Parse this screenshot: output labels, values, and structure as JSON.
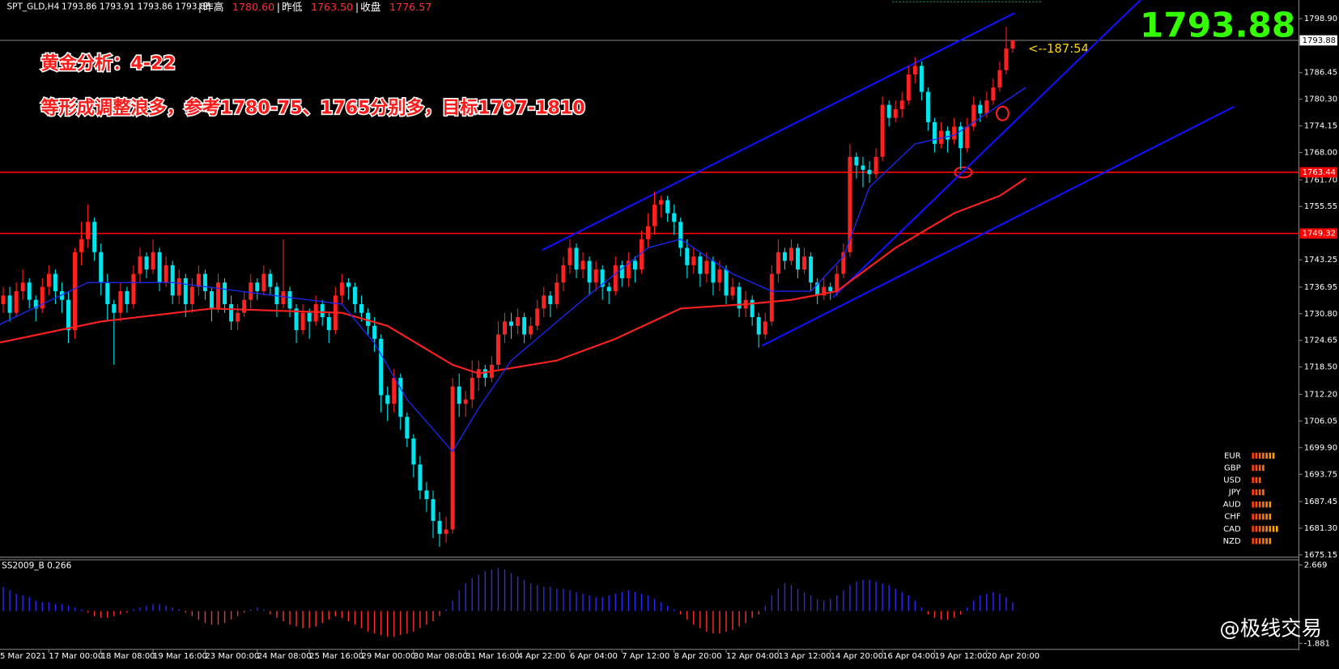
{
  "header": {
    "symbol": "SPT_GLD,H4",
    "ohlc": "1793.86 1793.91 1793.86 1793.88",
    "stats": [
      {
        "label": "昨高",
        "value": "1780.60"
      },
      {
        "label": "昨低",
        "value": "1763.50"
      },
      {
        "label": "收盘",
        "value": "1776.57"
      }
    ]
  },
  "chart_data": {
    "type": "candlestick",
    "annotations": [
      "黄金分析：4-22",
      "等形成调整浪多，参考1780-75、1765分别多，目标1797-1810"
    ],
    "countdown": "<--187:54",
    "last_price": 1793.88,
    "up_color": "#ff2020",
    "down_color": "#00e5ee",
    "ohlc": [
      [
        1731,
        1736,
        1729,
        1733
      ],
      [
        1733,
        1737,
        1731,
        1735
      ],
      [
        1735,
        1737,
        1729,
        1731
      ],
      [
        1731,
        1738,
        1730,
        1736
      ],
      [
        1736,
        1741,
        1734,
        1738
      ],
      [
        1738,
        1739,
        1732,
        1734
      ],
      [
        1734,
        1735,
        1729,
        1732
      ],
      [
        1732,
        1739,
        1731,
        1737
      ],
      [
        1737,
        1742,
        1735,
        1740
      ],
      [
        1740,
        1741,
        1733,
        1736
      ],
      [
        1736,
        1738,
        1731,
        1734
      ],
      [
        1734,
        1736,
        1724,
        1727
      ],
      [
        1727,
        1746,
        1725,
        1745
      ],
      [
        1745,
        1752,
        1742,
        1748
      ],
      [
        1748,
        1756,
        1746,
        1752
      ],
      [
        1752,
        1753,
        1743,
        1745
      ],
      [
        1745,
        1747,
        1735,
        1738
      ],
      [
        1738,
        1740,
        1729,
        1733
      ],
      [
        1733,
        1734,
        1719,
        1731
      ],
      [
        1731,
        1738,
        1729,
        1736
      ],
      [
        1736,
        1737,
        1731,
        1733
      ],
      [
        1733,
        1742,
        1732,
        1740
      ],
      [
        1740,
        1746,
        1738,
        1744
      ],
      [
        1744,
        1745,
        1739,
        1741
      ],
      [
        1741,
        1748,
        1740,
        1745
      ],
      [
        1745,
        1746,
        1736,
        1738
      ],
      [
        1738,
        1744,
        1737,
        1742
      ],
      [
        1742,
        1743,
        1733,
        1735
      ],
      [
        1735,
        1741,
        1733,
        1739
      ],
      [
        1739,
        1740,
        1730,
        1733
      ],
      [
        1733,
        1739,
        1731,
        1737
      ],
      [
        1737,
        1742,
        1735,
        1740
      ],
      [
        1740,
        1741,
        1734,
        1736
      ],
      [
        1736,
        1737,
        1729,
        1732
      ],
      [
        1732,
        1740,
        1731,
        1738
      ],
      [
        1738,
        1739,
        1731,
        1733
      ],
      [
        1733,
        1735,
        1727,
        1729
      ],
      [
        1729,
        1733,
        1727,
        1731
      ],
      [
        1731,
        1736,
        1730,
        1734
      ],
      [
        1734,
        1740,
        1732,
        1738
      ],
      [
        1738,
        1739,
        1734,
        1736
      ],
      [
        1736,
        1742,
        1735,
        1740
      ],
      [
        1740,
        1741,
        1735,
        1737
      ],
      [
        1737,
        1738,
        1730,
        1733
      ],
      [
        1733,
        1748,
        1732,
        1736
      ],
      [
        1736,
        1737,
        1730,
        1732
      ],
      [
        1732,
        1733,
        1724,
        1727
      ],
      [
        1727,
        1733,
        1726,
        1731
      ],
      [
        1731,
        1732,
        1725,
        1729
      ],
      [
        1729,
        1735,
        1728,
        1733
      ],
      [
        1733,
        1734,
        1728,
        1730
      ],
      [
        1730,
        1731,
        1724,
        1727
      ],
      [
        1727,
        1737,
        1726,
        1735
      ],
      [
        1735,
        1740,
        1733,
        1738
      ],
      [
        1738,
        1739,
        1734,
        1737
      ],
      [
        1737,
        1738,
        1731,
        1733
      ],
      [
        1733,
        1735,
        1729,
        1731
      ],
      [
        1731,
        1732,
        1726,
        1728
      ],
      [
        1728,
        1730,
        1722,
        1725
      ],
      [
        1725,
        1726,
        1708,
        1712
      ],
      [
        1712,
        1714,
        1706,
        1710
      ],
      [
        1710,
        1718,
        1708,
        1716
      ],
      [
        1716,
        1717,
        1704,
        1707
      ],
      [
        1707,
        1708,
        1700,
        1702
      ],
      [
        1702,
        1703,
        1693,
        1696
      ],
      [
        1696,
        1698,
        1688,
        1690
      ],
      [
        1690,
        1692,
        1685,
        1688
      ],
      [
        1688,
        1690,
        1679,
        1683
      ],
      [
        1683,
        1685,
        1677,
        1680
      ],
      [
        1680,
        1684,
        1678,
        1681
      ],
      [
        1681,
        1716,
        1680,
        1714
      ],
      [
        1714,
        1717,
        1707,
        1710
      ],
      [
        1710,
        1713,
        1707,
        1711
      ],
      [
        1711,
        1720,
        1709,
        1716
      ],
      [
        1716,
        1720,
        1713,
        1718
      ],
      [
        1718,
        1719,
        1714,
        1716
      ],
      [
        1716,
        1721,
        1715,
        1719
      ],
      [
        1719,
        1729,
        1718,
        1726
      ],
      [
        1726,
        1731,
        1724,
        1729
      ],
      [
        1729,
        1731,
        1725,
        1728
      ],
      [
        1728,
        1732,
        1726,
        1730
      ],
      [
        1730,
        1731,
        1724,
        1726
      ],
      [
        1726,
        1730,
        1725,
        1728
      ],
      [
        1728,
        1734,
        1727,
        1732
      ],
      [
        1732,
        1737,
        1730,
        1735
      ],
      [
        1735,
        1736,
        1730,
        1733
      ],
      [
        1733,
        1740,
        1732,
        1738
      ],
      [
        1738,
        1744,
        1736,
        1742
      ],
      [
        1742,
        1748,
        1740,
        1746
      ],
      [
        1746,
        1747,
        1739,
        1741
      ],
      [
        1741,
        1745,
        1739,
        1743
      ],
      [
        1743,
        1744,
        1735,
        1738
      ],
      [
        1738,
        1743,
        1736,
        1741
      ],
      [
        1741,
        1742,
        1734,
        1737
      ],
      [
        1737,
        1738,
        1733,
        1736
      ],
      [
        1736,
        1744,
        1735,
        1742
      ],
      [
        1742,
        1743,
        1737,
        1739
      ],
      [
        1739,
        1745,
        1737,
        1743
      ],
      [
        1743,
        1744,
        1738,
        1741
      ],
      [
        1741,
        1750,
        1740,
        1748
      ],
      [
        1748,
        1754,
        1746,
        1751
      ],
      [
        1751,
        1759,
        1749,
        1756
      ],
      [
        1756,
        1758,
        1753,
        1757
      ],
      [
        1757,
        1758,
        1752,
        1754
      ],
      [
        1754,
        1756,
        1749,
        1752
      ],
      [
        1752,
        1753,
        1744,
        1746
      ],
      [
        1746,
        1748,
        1739,
        1742
      ],
      [
        1742,
        1746,
        1740,
        1744
      ],
      [
        1744,
        1745,
        1737,
        1740
      ],
      [
        1740,
        1745,
        1738,
        1743
      ],
      [
        1743,
        1744,
        1735,
        1738
      ],
      [
        1738,
        1743,
        1736,
        1741
      ],
      [
        1741,
        1742,
        1733,
        1735
      ],
      [
        1735,
        1739,
        1734,
        1737
      ],
      [
        1737,
        1738,
        1730,
        1732
      ],
      [
        1732,
        1736,
        1730,
        1734
      ],
      [
        1734,
        1735,
        1728,
        1730
      ],
      [
        1730,
        1731,
        1723,
        1726
      ],
      [
        1726,
        1731,
        1725,
        1729
      ],
      [
        1729,
        1742,
        1728,
        1740
      ],
      [
        1740,
        1748,
        1738,
        1745
      ],
      [
        1745,
        1746,
        1741,
        1743
      ],
      [
        1743,
        1748,
        1742,
        1746
      ],
      [
        1746,
        1747,
        1739,
        1741
      ],
      [
        1741,
        1746,
        1740,
        1744
      ],
      [
        1744,
        1745,
        1736,
        1738
      ],
      [
        1738,
        1739,
        1733,
        1735
      ],
      [
        1735,
        1739,
        1734,
        1737
      ],
      [
        1737,
        1738,
        1734,
        1736
      ],
      [
        1736,
        1742,
        1735,
        1740
      ],
      [
        1740,
        1747,
        1739,
        1745
      ],
      [
        1745,
        1770,
        1744,
        1767
      ],
      [
        1767,
        1768,
        1762,
        1765
      ],
      [
        1765,
        1767,
        1760,
        1764
      ],
      [
        1764,
        1766,
        1761,
        1763
      ],
      [
        1763,
        1769,
        1762,
        1767
      ],
      [
        1767,
        1781,
        1766,
        1779
      ],
      [
        1779,
        1780,
        1774,
        1776
      ],
      [
        1776,
        1780,
        1775,
        1778
      ],
      [
        1778,
        1782,
        1776,
        1780
      ],
      [
        1780,
        1788,
        1779,
        1786
      ],
      [
        1786,
        1790,
        1784,
        1788
      ],
      [
        1788,
        1789,
        1780,
        1782
      ],
      [
        1782,
        1783,
        1773,
        1775
      ],
      [
        1775,
        1776,
        1768,
        1770
      ],
      [
        1770,
        1775,
        1769,
        1773
      ],
      [
        1773,
        1774,
        1768,
        1771
      ],
      [
        1771,
        1776,
        1770,
        1774
      ],
      [
        1774,
        1775,
        1764,
        1769
      ],
      [
        1769,
        1776,
        1768,
        1774
      ],
      [
        1774,
        1781,
        1773,
        1779
      ],
      [
        1779,
        1780,
        1775,
        1777
      ],
      [
        1777,
        1782,
        1776,
        1780
      ],
      [
        1780,
        1785,
        1779,
        1783
      ],
      [
        1783,
        1789,
        1782,
        1787
      ],
      [
        1787,
        1797,
        1786,
        1792
      ],
      [
        1792,
        1794,
        1791,
        1793.88
      ]
    ],
    "xlim": [
      0.5,
      199.8
    ],
    "xticks": [
      {
        "value": 0,
        "label": "5 Mar 2021"
      },
      {
        "value": 8,
        "label": "17 Mar 00:00"
      },
      {
        "value": 16,
        "label": "18 Mar 08:00"
      },
      {
        "value": 24,
        "label": "19 Mar 16:00"
      },
      {
        "value": 32,
        "label": "23 Mar 00:00"
      },
      {
        "value": 40,
        "label": "24 Mar 08:00"
      },
      {
        "value": 48,
        "label": "25 Mar 16:00"
      },
      {
        "value": 56,
        "label": "29 Mar 00:00"
      },
      {
        "value": 64,
        "label": "30 Mar 08:00"
      },
      {
        "value": 72,
        "label": "31 Mar 16:00"
      },
      {
        "value": 80,
        "label": "4 Apr 22:00"
      },
      {
        "value": 88,
        "label": "6 Apr 04:00"
      },
      {
        "value": 96,
        "label": "7 Apr 12:00"
      },
      {
        "value": 104,
        "label": "8 Apr 20:00"
      },
      {
        "value": 112,
        "label": "12 Apr 04:00"
      },
      {
        "value": 120,
        "label": "13 Apr 12:00"
      },
      {
        "value": 128,
        "label": "14 Apr 20:00"
      },
      {
        "value": 136,
        "label": "16 Apr 04:00"
      },
      {
        "value": 144,
        "label": "19 Apr 12:00"
      },
      {
        "value": 152,
        "label": "20 Apr 20:00"
      }
    ],
    "ylim": [
      1674.8,
      1803.2
    ],
    "yticks": [
      {
        "value": 1798.9,
        "label": "1798.90"
      },
      1786.45,
      {
        "value": 1780.3,
        "label": "1780.30"
      },
      1774.15,
      {
        "value": 1768,
        "label": "1768.00"
      },
      {
        "value": 1761.7,
        "label": "1761.70"
      },
      1755.55,
      1743.25,
      1736.95,
      {
        "value": 1730.8,
        "label": "1730.80"
      },
      1724.65,
      {
        "value": 1718.5,
        "label": "1718.50"
      },
      {
        "value": 1712.2,
        "label": "1712.20"
      },
      1706.05,
      {
        "value": 1699.9,
        "label": "1699.90"
      },
      1693.75,
      1687.45,
      {
        "value": 1681.3,
        "label": "1681.30"
      },
      1675.15
    ],
    "hlines": [
      1763.44,
      1749.32
    ],
    "hline_color": "#ff0000",
    "ma_lines": [
      {
        "color": "#ff2020",
        "points": [
          [
            0,
            1724
          ],
          [
            16,
            1729
          ],
          [
            33,
            1732
          ],
          [
            53,
            1731
          ],
          [
            60,
            1728
          ],
          [
            70,
            1719
          ],
          [
            74,
            1717
          ],
          [
            86,
            1720
          ],
          [
            95,
            1725
          ],
          [
            105,
            1732
          ],
          [
            115,
            1733
          ],
          [
            122,
            1734
          ],
          [
            129,
            1736
          ],
          [
            138,
            1746
          ],
          [
            147,
            1754
          ],
          [
            154,
            1758
          ],
          [
            158,
            1762
          ]
        ]
      },
      {
        "color": "#1a2aff",
        "points": [
          [
            0,
            1728
          ],
          [
            14,
            1738
          ],
          [
            27,
            1738
          ],
          [
            53,
            1733
          ],
          [
            58,
            1724
          ],
          [
            63,
            1711
          ],
          [
            70,
            1699
          ],
          [
            74,
            1709
          ],
          [
            79,
            1720
          ],
          [
            90,
            1734
          ],
          [
            100,
            1746
          ],
          [
            105,
            1748
          ],
          [
            113,
            1740
          ],
          [
            119,
            1736
          ],
          [
            125,
            1736
          ],
          [
            130,
            1744
          ],
          [
            134,
            1760
          ],
          [
            141,
            1770
          ],
          [
            147,
            1772
          ],
          [
            151,
            1776
          ],
          [
            158,
            1783
          ]
        ]
      }
    ],
    "trendlines": [
      {
        "color": "#1010ff",
        "points": [
          [
            83.8,
            1745.5
          ],
          [
            156.3,
            1800.2
          ]
        ]
      },
      {
        "color": "#1010ff",
        "points": [
          [
            128.4,
            1734.6
          ],
          [
            175.6,
            1803.2
          ]
        ]
      },
      {
        "color": "#1010ff",
        "points": [
          [
            117.5,
            1723.4
          ],
          [
            190,
            1778.6
          ]
        ]
      }
    ],
    "indicator": {
      "name": "SS2009_B 0.266",
      "pos_color": "#2a2aff",
      "neg_color": "#ff3030",
      "ylim": [
        -2.18,
        3.02
      ],
      "yticks": [
        2.669,
        -1.881
      ],
      "values": [
        1.3,
        1.4,
        1.2,
        1.0,
        0.9,
        0.8,
        0.6,
        0.5,
        0.5,
        0.4,
        0.4,
        0.3,
        0.2,
        0.1,
        -0.1,
        -0.3,
        -0.4,
        -0.4,
        -0.3,
        -0.2,
        -0.1,
        0.1,
        0.2,
        0.3,
        0.4,
        0.4,
        0.3,
        0.2,
        0.1,
        -0.1,
        -0.3,
        -0.5,
        -0.7,
        -0.8,
        -0.8,
        -0.7,
        -0.5,
        -0.3,
        -0.1,
        0.1,
        0.2,
        0.1,
        -0.2,
        -0.4,
        -0.6,
        -0.8,
        -0.9,
        -1.0,
        -1.0,
        -0.9,
        -0.7,
        -0.5,
        -0.3,
        -0.4,
        -0.6,
        -0.8,
        -1.0,
        -1.2,
        -1.3,
        -1.4,
        -1.5,
        -1.5,
        -1.4,
        -1.3,
        -1.2,
        -1.0,
        -0.8,
        -0.6,
        -0.3,
        0.1,
        0.6,
        1.2,
        1.6,
        1.9,
        2.1,
        2.3,
        2.4,
        2.5,
        2.4,
        2.2,
        2.0,
        1.8,
        1.6,
        1.5,
        1.4,
        1.4,
        1.3,
        1.3,
        1.2,
        1.1,
        1.0,
        0.9,
        0.8,
        0.8,
        0.9,
        1.0,
        1.1,
        1.2,
        1.1,
        1.0,
        0.9,
        0.7,
        0.5,
        0.3,
        0.1,
        -0.2,
        -0.5,
        -0.8,
        -1.0,
        -1.2,
        -1.3,
        -1.3,
        -1.2,
        -1.1,
        -0.9,
        -0.7,
        -0.4,
        -0.2,
        0.3,
        0.9,
        1.3,
        1.6,
        1.5,
        1.3,
        1.1,
        0.9,
        0.7,
        0.6,
        0.7,
        0.9,
        1.2,
        1.5,
        1.7,
        1.8,
        1.8,
        1.7,
        1.6,
        1.5,
        1.3,
        1.1,
        0.9,
        0.6,
        0.2,
        -0.2,
        -0.4,
        -0.5,
        -0.5,
        -0.4,
        -0.2,
        0.2,
        0.6,
        0.9,
        1.0,
        1.1,
        1.0,
        0.8,
        0.5
      ]
    },
    "currency_strength": {
      "categories": [
        "EUR",
        "GBP",
        "USD",
        "JPY",
        "AUD",
        "CHF",
        "CAD",
        "NZD"
      ],
      "values": [
        7,
        4,
        3,
        4,
        6,
        6,
        8,
        6
      ]
    },
    "watermark": "@极线交易"
  }
}
